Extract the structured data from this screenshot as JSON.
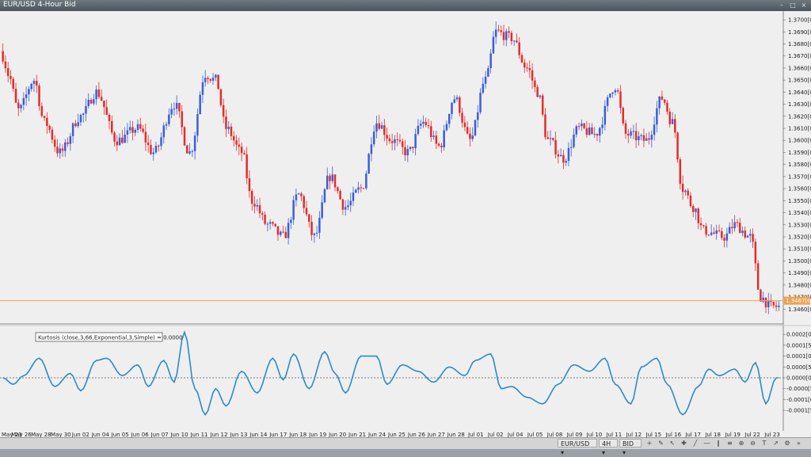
{
  "window": {
    "title": "EUR/USD 4-Hour Bid",
    "minimize_icon": "minimize-icon",
    "restore_icon": "restore-icon",
    "close_icon": "close-icon"
  },
  "colors": {
    "bull": "#3a5ed8",
    "bear": "#e52b2b",
    "indicator": "#2b8bc6",
    "current_price_line": "#f0a050",
    "background": "#efefef"
  },
  "indicator_label": "Kurtosis (close,3,66,Exponential,3,Simple) = 0.0000",
  "statusbar": {
    "symbol": "EUR/USD",
    "timeframe": "4H",
    "price_type": "BID",
    "icons": [
      "add-indicator-icon",
      "drawing-tools-icon",
      "cursor-icon",
      "crosshair-icon",
      "trendline-icon",
      "hline-icon",
      "channel-icon",
      "fibonacci-icon",
      "zoom-in-icon",
      "zoom-out-icon",
      "text-icon",
      "arrow-icon",
      "properties-icon",
      "more-icon"
    ]
  },
  "chart_data": [
    {
      "type": "candlestick",
      "title": "EUR/USD 4-Hour Bid",
      "ylim": [
        1.3451,
        1.3702
      ],
      "y_ticks": [
        "1.3700[0]",
        "1.3690[0]",
        "1.3680[0]",
        "1.3670[0]",
        "1.3660[0]",
        "1.3650[0]",
        "1.3640[0]",
        "1.3630[0]",
        "1.3620[0]",
        "1.3610[0]",
        "1.3600[0]",
        "1.3590[0]",
        "1.3580[0]",
        "1.3570[0]",
        "1.3560[0]",
        "1.3550[0]",
        "1.3540[0]",
        "1.3530[0]",
        "1.3520[0]",
        "1.3510[0]",
        "1.3500[0]",
        "1.3490[0]",
        "1.3480[0]",
        "1.3470[0]",
        "1.3460[0]"
      ],
      "current_price_label": "1.3467[0]",
      "current_price": 1.3467,
      "x_labels": [
        "May 23",
        "May 26",
        "May 28",
        "May 30",
        "Jun 02",
        "Jun 04",
        "Jun 05",
        "Jun 06",
        "Jun 07",
        "Jun 10",
        "Jun 11",
        "Jun 12",
        "Jun 13",
        "Jun 14",
        "Jun 17",
        "Jun 18",
        "Jun 19",
        "Jun 20",
        "Jun 21",
        "Jun 24",
        "Jun 25",
        "Jun 26",
        "Jun 27",
        "Jun 28",
        "Jul 01",
        "Jul 02",
        "Jul 04",
        "Jul 05",
        "Jul 08",
        "Jul 09",
        "Jul 10",
        "Jul 11",
        "Jul 12",
        "Jul 15",
        "Jul 16",
        "Jul 17",
        "Jul 18",
        "Jul 19",
        "Jul 22",
        "Jul 23"
      ],
      "anchors": [
        [
          0,
          1.367
        ],
        [
          2,
          1.3655
        ],
        [
          6,
          1.3625
        ],
        [
          12,
          1.365
        ],
        [
          16,
          1.3615
        ],
        [
          22,
          1.359
        ],
        [
          30,
          1.362
        ],
        [
          36,
          1.364
        ],
        [
          44,
          1.36
        ],
        [
          52,
          1.361
        ],
        [
          58,
          1.359
        ],
        [
          66,
          1.363
        ],
        [
          72,
          1.359
        ],
        [
          78,
          1.3655
        ],
        [
          82,
          1.365
        ],
        [
          86,
          1.361
        ],
        [
          92,
          1.359
        ],
        [
          96,
          1.355
        ],
        [
          102,
          1.353
        ],
        [
          108,
          1.352
        ],
        [
          114,
          1.3555
        ],
        [
          120,
          1.352
        ],
        [
          126,
          1.357
        ],
        [
          132,
          1.3545
        ],
        [
          138,
          1.356
        ],
        [
          144,
          1.3615
        ],
        [
          150,
          1.36
        ],
        [
          156,
          1.359
        ],
        [
          162,
          1.3615
        ],
        [
          168,
          1.3595
        ],
        [
          174,
          1.3635
        ],
        [
          180,
          1.36
        ],
        [
          186,
          1.365
        ],
        [
          190,
          1.369
        ],
        [
          196,
          1.3685
        ],
        [
          202,
          1.366
        ],
        [
          206,
          1.364
        ],
        [
          210,
          1.36
        ],
        [
          216,
          1.3585
        ],
        [
          222,
          1.361
        ],
        [
          228,
          1.3605
        ],
        [
          236,
          1.3645
        ],
        [
          240,
          1.3605
        ],
        [
          248,
          1.36
        ],
        [
          254,
          1.3635
        ],
        [
          258,
          1.3615
        ],
        [
          262,
          1.356
        ],
        [
          266,
          1.3545
        ],
        [
          270,
          1.3525
        ],
        [
          278,
          1.352
        ],
        [
          282,
          1.353
        ],
        [
          288,
          1.352
        ],
        [
          292,
          1.347
        ],
        [
          296,
          1.3462
        ]
      ]
    },
    {
      "type": "line",
      "title": "Kurtosis (close,3,66,Exponential,3,Simple) = 0.0000",
      "ylim": [
        -0.00023,
        0.00023
      ],
      "y_ticks": [
        "0.0002[0]",
        "0.0001[5]",
        "0.0001[0]",
        "0.0000[5]",
        "0.0000[0]",
        "-0.0000[5]",
        "-0.0001[0]",
        "-0.0001[5]"
      ],
      "y_tick_values": [
        0.0002,
        0.00015,
        0.0001,
        5e-05,
        0,
        -5e-05,
        -0.0001,
        -0.00015
      ],
      "zero_line": 0,
      "anchors": [
        [
          0,
          0.0
        ],
        [
          4,
          -3e-05
        ],
        [
          8,
          1e-05
        ],
        [
          14,
          9e-05
        ],
        [
          20,
          -4e-05
        ],
        [
          26,
          2e-05
        ],
        [
          30,
          -6e-05
        ],
        [
          36,
          8e-05
        ],
        [
          40,
          9e-05
        ],
        [
          46,
          1e-05
        ],
        [
          52,
          6e-05
        ],
        [
          56,
          -4e-05
        ],
        [
          62,
          8e-05
        ],
        [
          66,
          -2e-05
        ],
        [
          70,
          0.00021
        ],
        [
          74,
          -5e-05
        ],
        [
          78,
          -0.00017
        ],
        [
          82,
          -5e-05
        ],
        [
          86,
          -0.00013
        ],
        [
          92,
          3e-05
        ],
        [
          98,
          -7e-05
        ],
        [
          104,
          9e-05
        ],
        [
          108,
          -1e-05
        ],
        [
          112,
          0.00011
        ],
        [
          118,
          -5e-05
        ],
        [
          124,
          0.00012
        ],
        [
          128,
          2e-05
        ],
        [
          132,
          -7e-05
        ],
        [
          138,
          0.0001
        ],
        [
          144,
          0.0001
        ],
        [
          148,
          -3e-05
        ],
        [
          154,
          6e-05
        ],
        [
          160,
          3e-05
        ],
        [
          166,
          -2e-05
        ],
        [
          172,
          5e-05
        ],
        [
          178,
          1e-05
        ],
        [
          182,
          8e-05
        ],
        [
          188,
          0.00011
        ],
        [
          192,
          -5e-05
        ],
        [
          196,
          -4e-05
        ],
        [
          202,
          -9e-05
        ],
        [
          208,
          -0.00012
        ],
        [
          214,
          -3e-05
        ],
        [
          220,
          6e-05
        ],
        [
          226,
          3e-05
        ],
        [
          232,
          9e-05
        ],
        [
          236,
          -3e-05
        ],
        [
          242,
          -0.00012
        ],
        [
          246,
          5e-05
        ],
        [
          252,
          9e-05
        ],
        [
          256,
          -3e-05
        ],
        [
          262,
          -0.00017
        ],
        [
          268,
          -4e-05
        ],
        [
          272,
          4e-05
        ],
        [
          276,
          1e-05
        ],
        [
          282,
          4e-05
        ],
        [
          286,
          -2e-05
        ],
        [
          290,
          7e-05
        ],
        [
          294,
          -0.00012
        ],
        [
          298,
          0.0
        ]
      ]
    }
  ]
}
